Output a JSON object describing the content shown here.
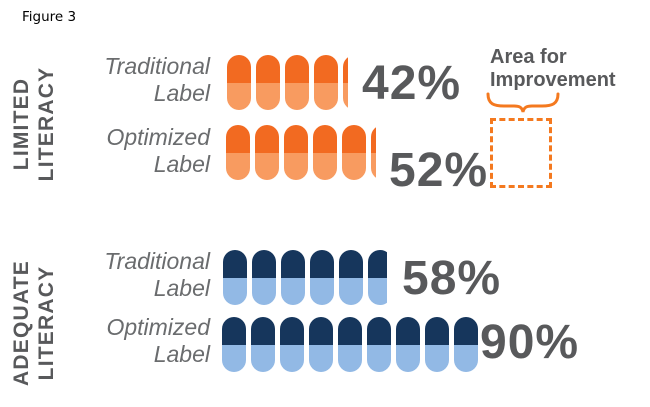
{
  "figure_label": "Figure 3",
  "colors": {
    "orange_dark": "#F26A21",
    "orange_light": "#F89B60",
    "navy_dark": "#16365C",
    "blue_light": "#92B9E5",
    "accent_orange": "#F4791F",
    "text_dark": "#58595B",
    "text_gray": "#6A6C6E"
  },
  "chart_data": {
    "type": "bar",
    "subtype": "pictogram",
    "title": "Figure 3",
    "icon": "pill-capsule",
    "unit_per_icon": 10,
    "legend_position": "none",
    "grid": false,
    "annotation": {
      "label": "Area for Improvement",
      "lines": [
        "Area for",
        "Improvement"
      ],
      "marker": "dashed-box"
    },
    "groups": [
      {
        "name": "LIMITED LITERACY",
        "name_lines": [
          "LIMITED",
          "LITERACY"
        ],
        "color_top": "#F26A21",
        "color_bottom": "#F89B60",
        "rows": [
          {
            "label": "Traditional Label",
            "label_lines": [
              "Traditional",
              "Label"
            ],
            "value": 42,
            "value_label": "42%"
          },
          {
            "label": "Optimized Label",
            "label_lines": [
              "Optimized",
              "Label"
            ],
            "value": 52,
            "value_label": "52%"
          }
        ]
      },
      {
        "name": "ADEQUATE LITERACY",
        "name_lines": [
          "ADEQUATE",
          "LITERACY"
        ],
        "color_top": "#16365C",
        "color_bottom": "#92B9E5",
        "rows": [
          {
            "label": "Traditional Label",
            "label_lines": [
              "Traditional",
              "Label"
            ],
            "value": 58,
            "value_label": "58%"
          },
          {
            "label": "Optimized Label",
            "label_lines": [
              "Optimized",
              "Label"
            ],
            "value": 90,
            "value_label": "90%"
          }
        ]
      }
    ]
  }
}
